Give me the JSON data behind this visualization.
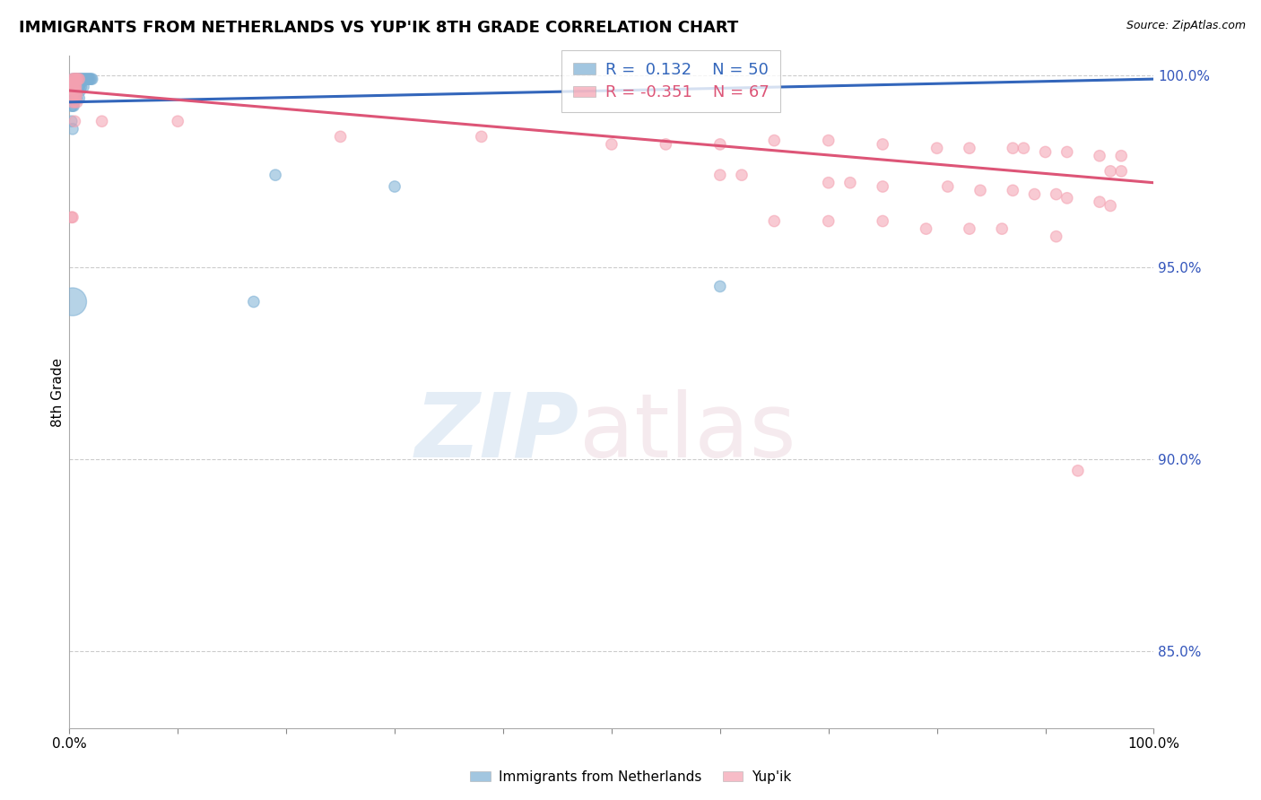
{
  "title": "IMMIGRANTS FROM NETHERLANDS VS YUP'IK 8TH GRADE CORRELATION CHART",
  "source": "Source: ZipAtlas.com",
  "ylabel": "8th Grade",
  "ylabel_right_labels": [
    100.0,
    95.0,
    90.0,
    85.0
  ],
  "blue_R": 0.132,
  "blue_N": 50,
  "pink_R": -0.351,
  "pink_N": 67,
  "blue_color": "#7bafd4",
  "pink_color": "#f4a0b0",
  "blue_line_color": "#3366bb",
  "pink_line_color": "#dd5577",
  "legend_blue": "Immigrants from Netherlands",
  "legend_pink": "Yup'ik",
  "blue_points_x": [
    0.003,
    0.005,
    0.006,
    0.007,
    0.008,
    0.009,
    0.01,
    0.011,
    0.012,
    0.013,
    0.014,
    0.015,
    0.016,
    0.017,
    0.018,
    0.019,
    0.02,
    0.021,
    0.004,
    0.006,
    0.007,
    0.009,
    0.01,
    0.011,
    0.003,
    0.004,
    0.005,
    0.007,
    0.008,
    0.009,
    0.011,
    0.013,
    0.004,
    0.006,
    0.008,
    0.01,
    0.003,
    0.004,
    0.007,
    0.009,
    0.002,
    0.003,
    0.004,
    0.002,
    0.003,
    0.19,
    0.3,
    0.003,
    0.17,
    0.6
  ],
  "blue_points_y": [
    0.999,
    0.999,
    0.999,
    0.999,
    0.999,
    0.999,
    0.999,
    0.999,
    0.999,
    0.999,
    0.999,
    0.999,
    0.999,
    0.999,
    0.999,
    0.999,
    0.999,
    0.999,
    0.998,
    0.998,
    0.998,
    0.998,
    0.998,
    0.998,
    0.997,
    0.997,
    0.997,
    0.997,
    0.997,
    0.997,
    0.997,
    0.997,
    0.996,
    0.996,
    0.996,
    0.996,
    0.994,
    0.994,
    0.994,
    0.994,
    0.992,
    0.992,
    0.992,
    0.988,
    0.986,
    0.974,
    0.971,
    0.941,
    0.941,
    0.945
  ],
  "blue_sizes": [
    80,
    80,
    80,
    80,
    80,
    80,
    80,
    80,
    80,
    80,
    80,
    80,
    80,
    80,
    80,
    80,
    80,
    80,
    80,
    80,
    80,
    80,
    80,
    80,
    80,
    80,
    80,
    80,
    80,
    80,
    80,
    80,
    80,
    80,
    80,
    80,
    80,
    80,
    80,
    80,
    80,
    80,
    80,
    80,
    80,
    80,
    80,
    500,
    80,
    80
  ],
  "pink_points_x": [
    0.003,
    0.004,
    0.005,
    0.006,
    0.007,
    0.008,
    0.009,
    0.003,
    0.004,
    0.006,
    0.003,
    0.005,
    0.006,
    0.004,
    0.005,
    0.006,
    0.003,
    0.005,
    0.006,
    0.007,
    0.003,
    0.005,
    0.007,
    0.005,
    0.03,
    0.1,
    0.25,
    0.38,
    0.5,
    0.55,
    0.6,
    0.65,
    0.7,
    0.75,
    0.8,
    0.83,
    0.87,
    0.88,
    0.9,
    0.92,
    0.95,
    0.97,
    0.96,
    0.97,
    0.6,
    0.62,
    0.7,
    0.72,
    0.75,
    0.81,
    0.84,
    0.87,
    0.89,
    0.91,
    0.92,
    0.95,
    0.96,
    0.002,
    0.003,
    0.65,
    0.7,
    0.75,
    0.79,
    0.83,
    0.86,
    0.91,
    0.93
  ],
  "pink_points_y": [
    0.999,
    0.999,
    0.999,
    0.999,
    0.999,
    0.999,
    0.999,
    0.998,
    0.998,
    0.998,
    0.997,
    0.997,
    0.997,
    0.996,
    0.996,
    0.996,
    0.995,
    0.995,
    0.995,
    0.995,
    0.993,
    0.993,
    0.993,
    0.988,
    0.988,
    0.988,
    0.984,
    0.984,
    0.982,
    0.982,
    0.982,
    0.983,
    0.983,
    0.982,
    0.981,
    0.981,
    0.981,
    0.981,
    0.98,
    0.98,
    0.979,
    0.979,
    0.975,
    0.975,
    0.974,
    0.974,
    0.972,
    0.972,
    0.971,
    0.971,
    0.97,
    0.97,
    0.969,
    0.969,
    0.968,
    0.967,
    0.966,
    0.963,
    0.963,
    0.962,
    0.962,
    0.962,
    0.96,
    0.96,
    0.96,
    0.958,
    0.897
  ],
  "pink_sizes": [
    80,
    80,
    80,
    80,
    80,
    80,
    80,
    80,
    80,
    80,
    80,
    80,
    80,
    80,
    80,
    80,
    80,
    80,
    80,
    80,
    80,
    80,
    80,
    80,
    80,
    80,
    80,
    80,
    80,
    80,
    80,
    80,
    80,
    80,
    80,
    80,
    80,
    80,
    80,
    80,
    80,
    80,
    80,
    80,
    80,
    80,
    80,
    80,
    80,
    80,
    80,
    80,
    80,
    80,
    80,
    80,
    80,
    80,
    80,
    80,
    80,
    80,
    80,
    80,
    80,
    80,
    80
  ],
  "xmin": 0.0,
  "xmax": 1.0,
  "ymin": 0.83,
  "ymax": 1.005,
  "blue_trend_x": [
    0.0,
    1.0
  ],
  "blue_trend_y": [
    0.993,
    0.999
  ],
  "pink_trend_x": [
    0.0,
    1.0
  ],
  "pink_trend_y": [
    0.996,
    0.972
  ],
  "grid_color": "#cccccc",
  "right_axis_color": "#3355bb",
  "title_fontsize": 13,
  "source_fontsize": 9,
  "tick_label_fontsize": 11,
  "legend_fontsize": 13
}
